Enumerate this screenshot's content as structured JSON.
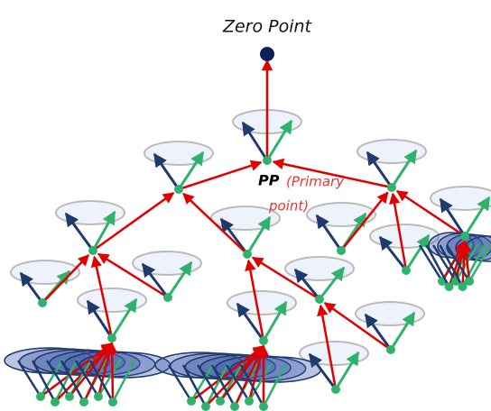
{
  "title": "Zero Point",
  "primary_label": {
    "abbr": "PP",
    "line1": "(Primary",
    "line2": "point)"
  }
}
